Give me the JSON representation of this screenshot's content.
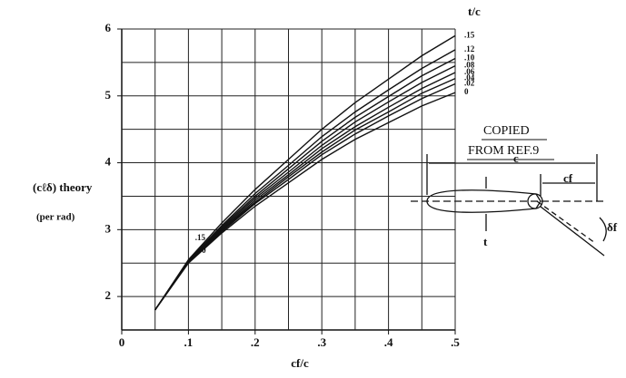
{
  "chart_data": {
    "type": "line",
    "y_label": "(cℓδ) theory",
    "y_label_unit": "(per rad)",
    "x_label": "cf/c",
    "legend_title": "t/c",
    "x": [
      0.05,
      0.1,
      0.15,
      0.2,
      0.25,
      0.3,
      0.35,
      0.4,
      0.45,
      0.5
    ],
    "series": [
      {
        "name": ".15",
        "color": "#111111",
        "values": [
          1.8,
          2.55,
          3.1,
          3.6,
          4.05,
          4.5,
          4.9,
          5.25,
          5.6,
          5.9
        ]
      },
      {
        "name": ".12",
        "color": "#111111",
        "values": [
          1.8,
          2.54,
          3.06,
          3.54,
          3.96,
          4.39,
          4.76,
          5.09,
          5.41,
          5.69
        ]
      },
      {
        "name": ".10",
        "color": "#111111",
        "values": [
          1.8,
          2.53,
          3.04,
          3.5,
          3.91,
          4.32,
          4.68,
          4.99,
          5.3,
          5.56
        ]
      },
      {
        "name": ".08",
        "color": "#111111",
        "values": [
          1.8,
          2.52,
          3.02,
          3.47,
          3.86,
          4.26,
          4.61,
          4.91,
          5.2,
          5.45
        ]
      },
      {
        "name": ".06",
        "color": "#111111",
        "values": [
          1.8,
          2.52,
          3.0,
          3.44,
          3.82,
          4.21,
          4.54,
          4.83,
          5.11,
          5.35
        ]
      },
      {
        "name": ".04",
        "color": "#111111",
        "values": [
          1.8,
          2.51,
          2.99,
          3.41,
          3.79,
          4.16,
          4.49,
          4.76,
          5.04,
          5.26
        ]
      },
      {
        "name": ".02",
        "color": "#111111",
        "values": [
          1.8,
          2.51,
          2.97,
          3.39,
          3.75,
          4.12,
          4.43,
          4.7,
          4.96,
          5.18
        ]
      },
      {
        "name": "0",
        "color": "#111111",
        "values": [
          1.8,
          2.5,
          2.95,
          3.35,
          3.7,
          4.05,
          4.35,
          4.6,
          4.85,
          5.05
        ]
      }
    ],
    "xlim": [
      0,
      0.5
    ],
    "ylim": [
      1.5,
      6
    ],
    "xticks": [
      0,
      {
        "value": 0.1,
        "label": ".1"
      },
      {
        "value": 0.2,
        "label": ".2"
      },
      {
        "value": 0.3,
        "label": ".3"
      },
      {
        "value": 0.4,
        "label": ".4"
      },
      {
        "value": 0.5,
        "label": ".5"
      }
    ],
    "yticks": [
      2,
      3,
      4,
      5,
      6
    ],
    "xgrid": [
      0.05,
      0.1,
      0.15,
      0.2,
      0.25,
      0.3,
      0.35,
      0.4,
      0.45,
      0.5
    ],
    "ygrid": [
      2,
      2.5,
      3,
      3.5,
      4,
      4.5,
      5,
      5.5,
      6
    ],
    "grid": true,
    "annotations": [
      "COPIED",
      "FROM REF.9"
    ],
    "diagram_labels": {
      "chord": "c",
      "flap_chord": "cf",
      "thickness": "t",
      "deflection": "δf"
    }
  }
}
